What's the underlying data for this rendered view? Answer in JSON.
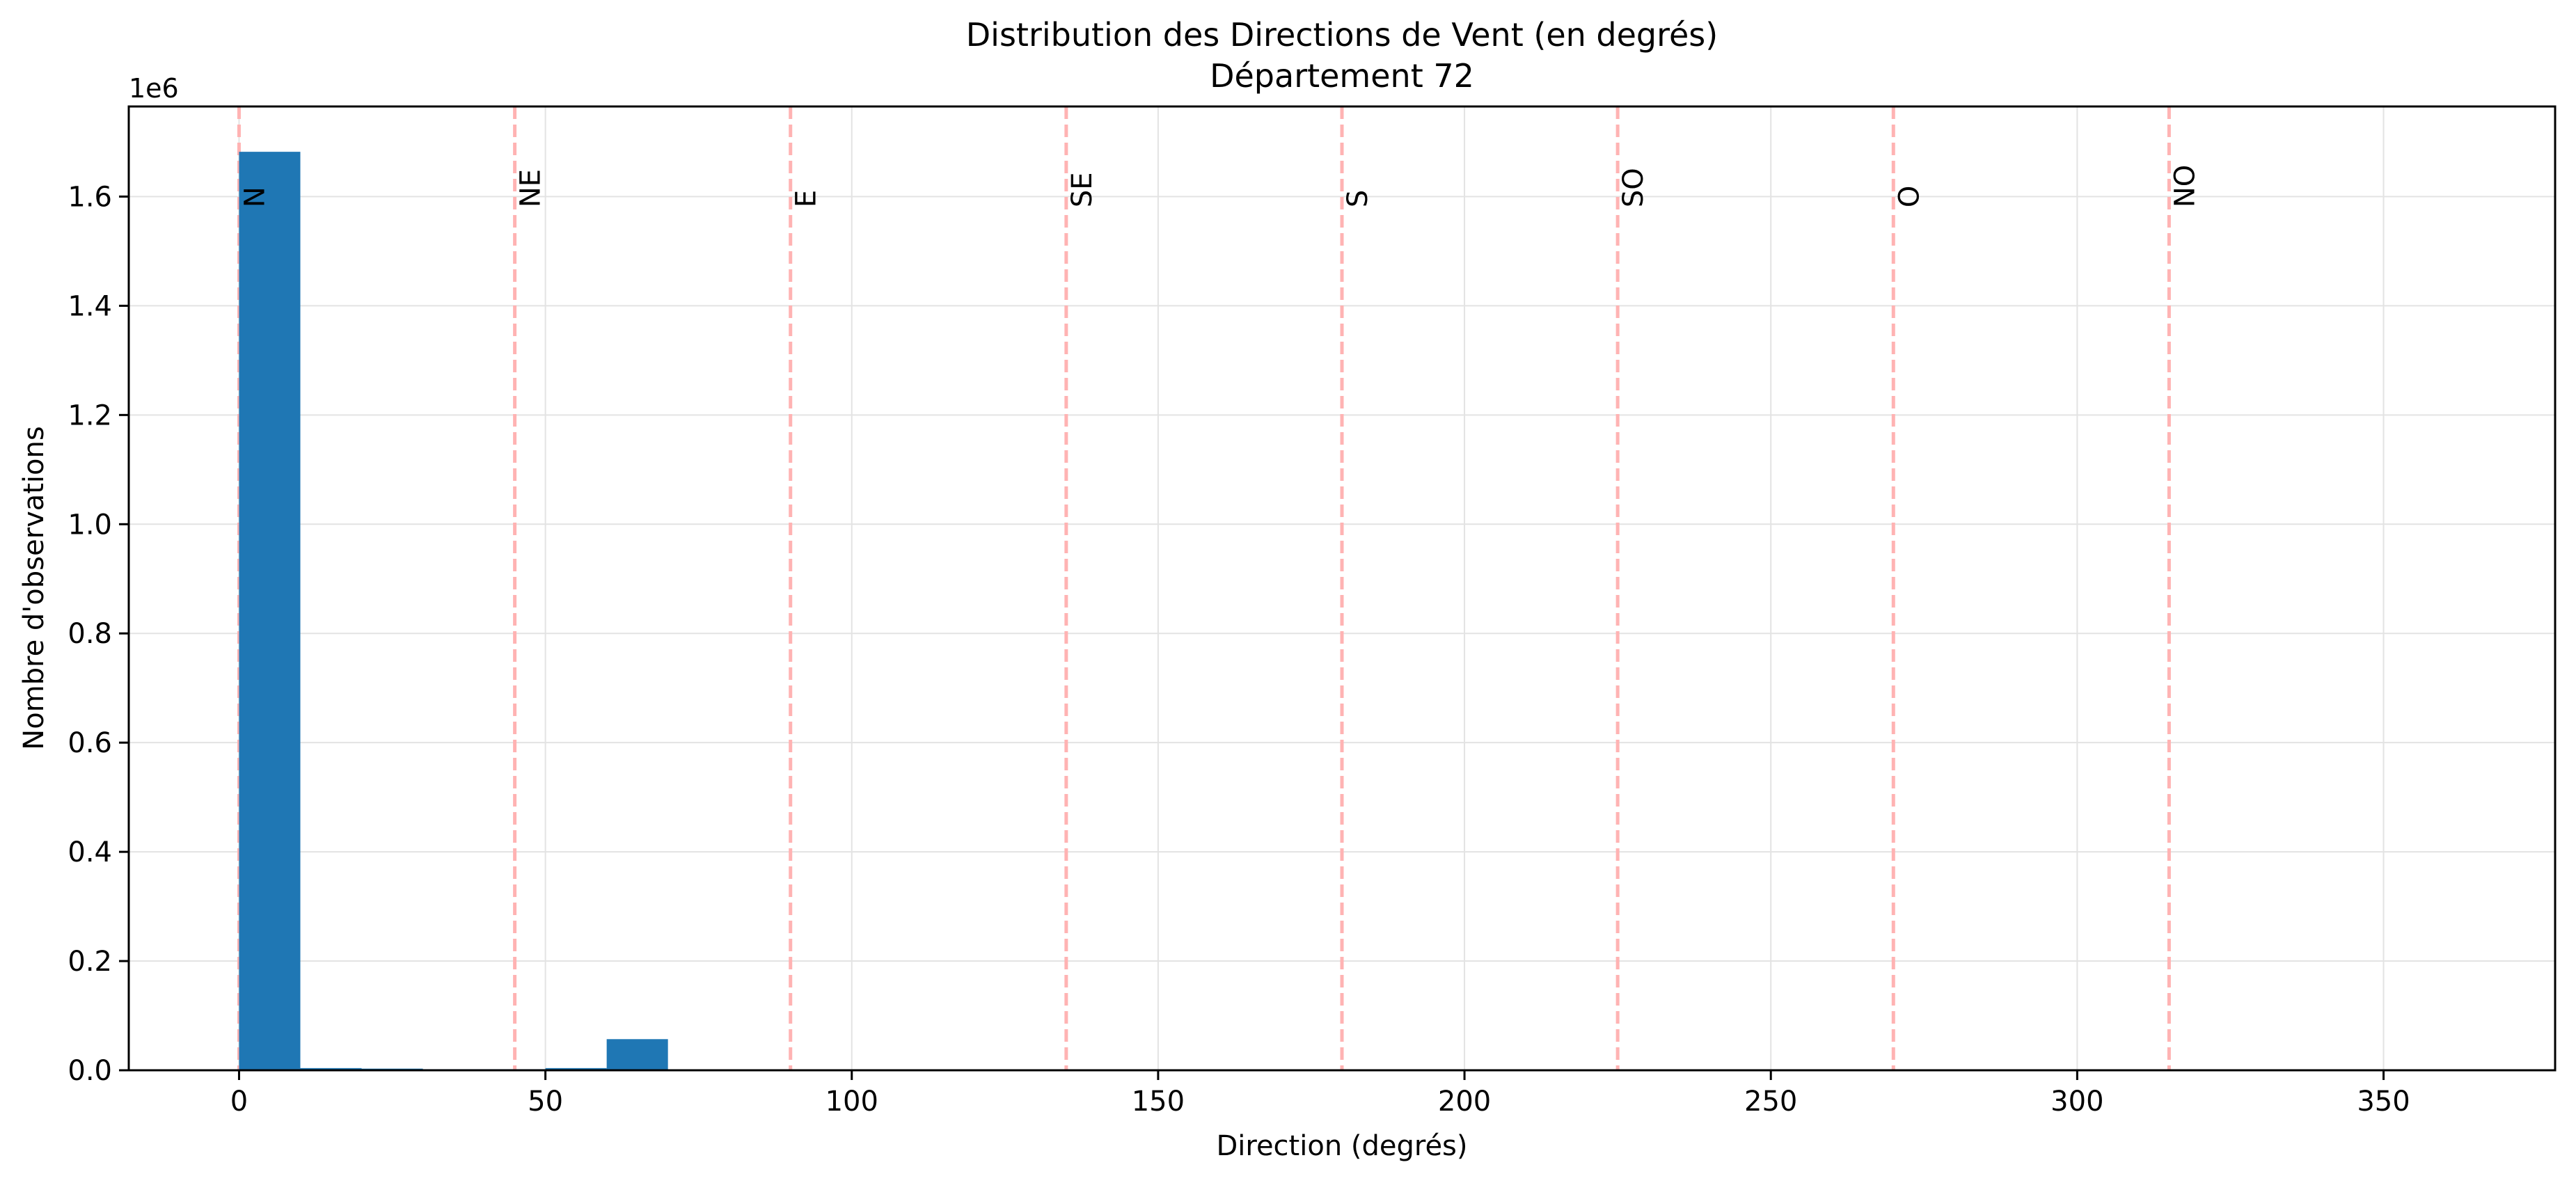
{
  "chart_data": {
    "type": "bar",
    "title": "Distribution des Directions de Vent (en degrés)",
    "subtitle": "Département 72",
    "xlabel": "Direction (degrés)",
    "ylabel": "Nombre d'observations",
    "y_scale_label": "1e6",
    "xlim": [
      -18,
      378
    ],
    "ylim": [
      0,
      1.765
    ],
    "x_ticks": [
      0,
      50,
      100,
      150,
      200,
      250,
      300,
      350
    ],
    "x_tick_labels": [
      "0",
      "50",
      "100",
      "150",
      "200",
      "250",
      "300",
      "350"
    ],
    "y_ticks": [
      0.0,
      0.2,
      0.4,
      0.6,
      0.8,
      1.0,
      1.2,
      1.4,
      1.6
    ],
    "y_tick_labels": [
      "0.0",
      "0.2",
      "0.4",
      "0.6",
      "0.8",
      "1.0",
      "1.2",
      "1.4",
      "1.6"
    ],
    "grid": true,
    "bin_width": 10,
    "bins": [
      {
        "x0": 0,
        "x1": 10,
        "value": 1.682
      },
      {
        "x0": 10,
        "x1": 20,
        "value": 0.004
      },
      {
        "x0": 20,
        "x1": 30,
        "value": 0.003
      },
      {
        "x0": 30,
        "x1": 40,
        "value": 0.002
      },
      {
        "x0": 40,
        "x1": 50,
        "value": 0.002
      },
      {
        "x0": 50,
        "x1": 60,
        "value": 0.004
      },
      {
        "x0": 60,
        "x1": 70,
        "value": 0.057
      }
    ],
    "direction_lines": [
      {
        "x": 0,
        "label": "N"
      },
      {
        "x": 45,
        "label": "NE"
      },
      {
        "x": 90,
        "label": "E"
      },
      {
        "x": 135,
        "label": "SE"
      },
      {
        "x": 180,
        "label": "S"
      },
      {
        "x": 225,
        "label": "SO"
      },
      {
        "x": 270,
        "label": "O"
      },
      {
        "x": 315,
        "label": "NO"
      }
    ],
    "colors": {
      "bar": "#1f77b4",
      "direction_line": "#ffb3b3",
      "grid": "#e3e3e3",
      "axes": "#000000"
    }
  }
}
